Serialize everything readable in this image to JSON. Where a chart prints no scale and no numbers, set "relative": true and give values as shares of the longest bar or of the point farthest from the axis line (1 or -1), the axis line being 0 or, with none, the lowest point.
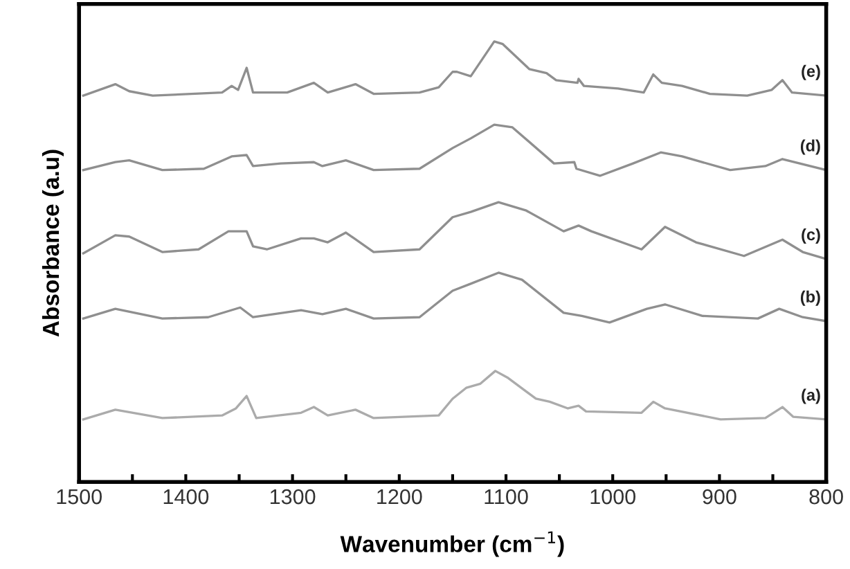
{
  "chart_data": {
    "type": "line",
    "relative": true,
    "xlabel": "Wavenumber (cm$^{−1}$)",
    "ylabel": "Absorbance (a.u)",
    "tick_labels": "x",
    "marker": "none",
    "line_style": "solid",
    "xlim": [
      1500,
      800
    ],
    "xticks": [
      1500,
      {
        "value": 1450,
        "label": null
      },
      1400,
      {
        "value": 1350,
        "label": null
      },
      1300,
      {
        "value": 1250,
        "label": null
      },
      1200,
      {
        "value": 1150,
        "label": null
      },
      1100,
      {
        "value": 1050,
        "label": null
      },
      1000,
      {
        "value": 950,
        "label": null
      },
      900,
      {
        "value": 850,
        "label": null
      },
      800
    ],
    "series": [
      {
        "name": "(a)",
        "color": "#ababab",
        "x": [
          1496,
          1466,
          1422,
          1366,
          1353,
          1343,
          1334,
          1292,
          1280,
          1267,
          1241,
          1224,
          1163,
          1150,
          1137,
          1124,
          1110,
          1098,
          1072,
          1059,
          1042,
          1032,
          1025,
          973,
          962,
          951,
          899,
          857,
          841,
          831,
          800
        ],
        "values": [
          0.142,
          0.164,
          0.145,
          0.151,
          0.167,
          0.195,
          0.145,
          0.157,
          0.17,
          0.151,
          0.164,
          0.145,
          0.151,
          0.189,
          0.214,
          0.223,
          0.252,
          0.236,
          0.189,
          0.182,
          0.167,
          0.173,
          0.16,
          0.157,
          0.182,
          0.167,
          0.142,
          0.145,
          0.17,
          0.148,
          0.142
        ]
      },
      {
        "name": "(b)",
        "color": "#8f8f8f",
        "x": [
          1496,
          1466,
          1422,
          1379,
          1349,
          1337,
          1292,
          1272,
          1250,
          1224,
          1181,
          1150,
          1133,
          1107,
          1085,
          1046,
          1029,
          1003,
          968,
          951,
          916,
          864,
          844,
          822,
          800
        ],
        "values": [
          0.371,
          0.393,
          0.371,
          0.374,
          0.396,
          0.374,
          0.39,
          0.381,
          0.393,
          0.371,
          0.374,
          0.434,
          0.45,
          0.475,
          0.459,
          0.384,
          0.377,
          0.362,
          0.393,
          0.403,
          0.377,
          0.371,
          0.393,
          0.374,
          0.365
        ]
      },
      {
        "name": "(c)",
        "color": "#8f8f8f",
        "x": [
          1496,
          1466,
          1453,
          1422,
          1388,
          1360,
          1343,
          1337,
          1324,
          1292,
          1280,
          1267,
          1250,
          1224,
          1181,
          1150,
          1133,
          1107,
          1081,
          1046,
          1032,
          1020,
          973,
          951,
          922,
          877,
          841,
          822,
          800
        ],
        "values": [
          0.519,
          0.56,
          0.557,
          0.522,
          0.528,
          0.569,
          0.569,
          0.535,
          0.528,
          0.553,
          0.553,
          0.544,
          0.566,
          0.522,
          0.528,
          0.601,
          0.613,
          0.635,
          0.616,
          0.569,
          0.582,
          0.569,
          0.528,
          0.579,
          0.544,
          0.513,
          0.55,
          0.522,
          0.506
        ]
      },
      {
        "name": "(d)",
        "color": "#8f8f8f",
        "x": [
          1496,
          1466,
          1453,
          1422,
          1383,
          1357,
          1343,
          1337,
          1311,
          1280,
          1272,
          1250,
          1224,
          1181,
          1150,
          1133,
          1111,
          1094,
          1055,
          1036,
          1034,
          1012,
          981,
          955,
          935,
          890,
          857,
          841,
          800
        ],
        "values": [
          0.708,
          0.726,
          0.73,
          0.708,
          0.711,
          0.739,
          0.742,
          0.717,
          0.723,
          0.726,
          0.717,
          0.73,
          0.708,
          0.711,
          0.758,
          0.78,
          0.811,
          0.805,
          0.723,
          0.726,
          0.711,
          0.695,
          0.723,
          0.748,
          0.739,
          0.708,
          0.717,
          0.733,
          0.708
        ]
      },
      {
        "name": "(e)",
        "color": "#8f8f8f",
        "x": [
          1496,
          1466,
          1453,
          1431,
          1366,
          1357,
          1351,
          1343,
          1337,
          1305,
          1280,
          1267,
          1241,
          1224,
          1181,
          1163,
          1150,
          1146,
          1133,
          1111,
          1103,
          1078,
          1062,
          1053,
          1033,
          1032,
          1027,
          995,
          971,
          962,
          954,
          935,
          909,
          874,
          851,
          841,
          832,
          800
        ],
        "values": [
          0.877,
          0.903,
          0.887,
          0.877,
          0.884,
          0.899,
          0.89,
          0.94,
          0.884,
          0.884,
          0.906,
          0.884,
          0.903,
          0.881,
          0.884,
          0.896,
          0.931,
          0.931,
          0.921,
          1.0,
          0.994,
          0.937,
          0.928,
          0.912,
          0.906,
          0.915,
          0.899,
          0.893,
          0.884,
          0.925,
          0.906,
          0.899,
          0.881,
          0.877,
          0.89,
          0.912,
          0.884,
          0.877
        ]
      }
    ]
  }
}
